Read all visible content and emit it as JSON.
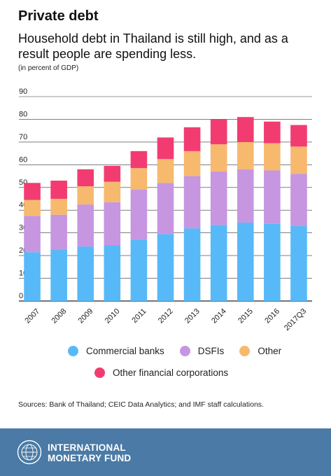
{
  "header": {
    "title": "Private debt",
    "subtitle": "Household debt in Thailand is still high, and as a result people are spending less.",
    "units": "(in percent of GDP)"
  },
  "chart_data": {
    "type": "bar",
    "stacked": true,
    "categories": [
      "2007",
      "2008",
      "2009",
      "2010",
      "2011",
      "2012",
      "2013",
      "2014",
      "2015",
      "2016",
      "2017Q3"
    ],
    "series": [
      {
        "name": "Commercial banks",
        "color": "#58b9f8",
        "values": [
          21.5,
          22.5,
          24,
          24.5,
          27,
          29.5,
          32,
          33.5,
          34.5,
          34,
          33
        ]
      },
      {
        "name": "DSFIs",
        "color": "#c696e1",
        "values": [
          16,
          15.5,
          18.5,
          19,
          22,
          22.5,
          23,
          23.5,
          23.5,
          23.5,
          23
        ]
      },
      {
        "name": "Other",
        "color": "#f6b96e",
        "values": [
          7,
          7,
          8,
          9,
          9.5,
          10.5,
          11,
          12,
          12,
          12,
          12
        ]
      },
      {
        "name": "Other financial corporations",
        "color": "#f23c71",
        "values": [
          7.5,
          8,
          7.5,
          7,
          7.5,
          9.5,
          10.5,
          11,
          11,
          9.5,
          9.5
        ]
      }
    ],
    "ylim": [
      0,
      90
    ],
    "yticks": [
      0,
      10,
      20,
      30,
      40,
      50,
      60,
      70,
      80,
      90
    ],
    "grid": true,
    "legend_position": "bottom"
  },
  "sources": "Sources: Bank of Thailand; CEIC Data Analytics; and IMF staff calculations.",
  "footer": {
    "org_line1": "INTERNATIONAL",
    "org_line2": "MONETARY FUND",
    "brand_color": "#4a7aa5"
  }
}
